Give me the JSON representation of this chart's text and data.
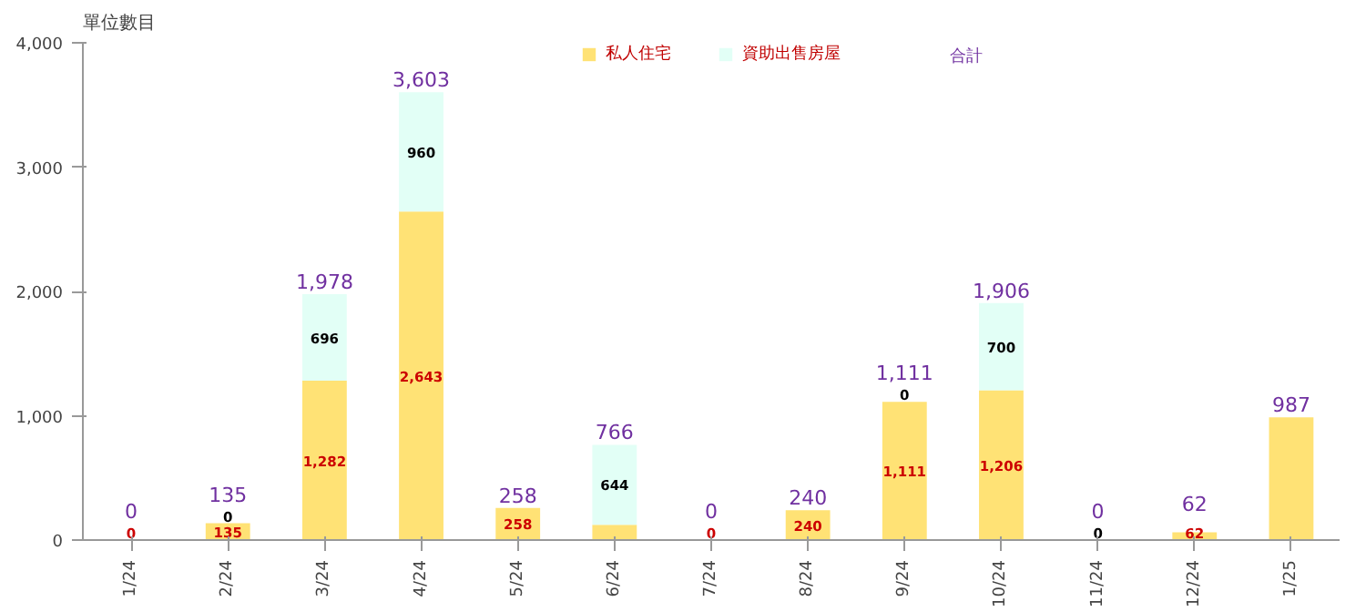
{
  "chart_data": {
    "type": "bar",
    "stacked": true,
    "ylabel": "單位數目",
    "categories": [
      "1/24",
      "2/24",
      "3/24",
      "4/24",
      "5/24",
      "6/24",
      "7/24",
      "8/24",
      "9/24",
      "10/24",
      "11/24",
      "12/24",
      "1/25"
    ],
    "series": [
      {
        "name": "私人住宅",
        "color": "#ffe275",
        "values": [
          0,
          135,
          1282,
          2643,
          258,
          122,
          0,
          240,
          1111,
          1206,
          0,
          62,
          987
        ],
        "value_labels": [
          "0",
          "135",
          "1,282",
          "2,643",
          "258",
          null,
          "0",
          "240",
          "1,111",
          "1,206",
          null,
          "62",
          null
        ]
      },
      {
        "name": "資助出售房屋",
        "color": "#e2fff6",
        "values": [
          0,
          0,
          696,
          960,
          0,
          644,
          0,
          0,
          0,
          700,
          0,
          0,
          0
        ],
        "value_labels": [
          null,
          "0",
          "696",
          "960",
          null,
          "644",
          null,
          null,
          "0",
          "700",
          "0",
          null,
          null
        ]
      }
    ],
    "totals": [
      "0",
      "135",
      "1,978",
      "3,603",
      "258",
      "766",
      "0",
      "240",
      "1,111",
      "1,906",
      "0",
      "62",
      "987"
    ],
    "annotations": [
      "合計"
    ],
    "ylim": [
      0,
      4000
    ],
    "yticks": [
      {
        "value": 0,
        "label": "0"
      },
      {
        "value": 1000,
        "label": "1,000"
      },
      {
        "value": 2000,
        "label": "2,000"
      },
      {
        "value": 3000,
        "label": "3,000"
      },
      {
        "value": 4000,
        "label": "4,000"
      }
    ],
    "legend": "top",
    "grid": false
  }
}
